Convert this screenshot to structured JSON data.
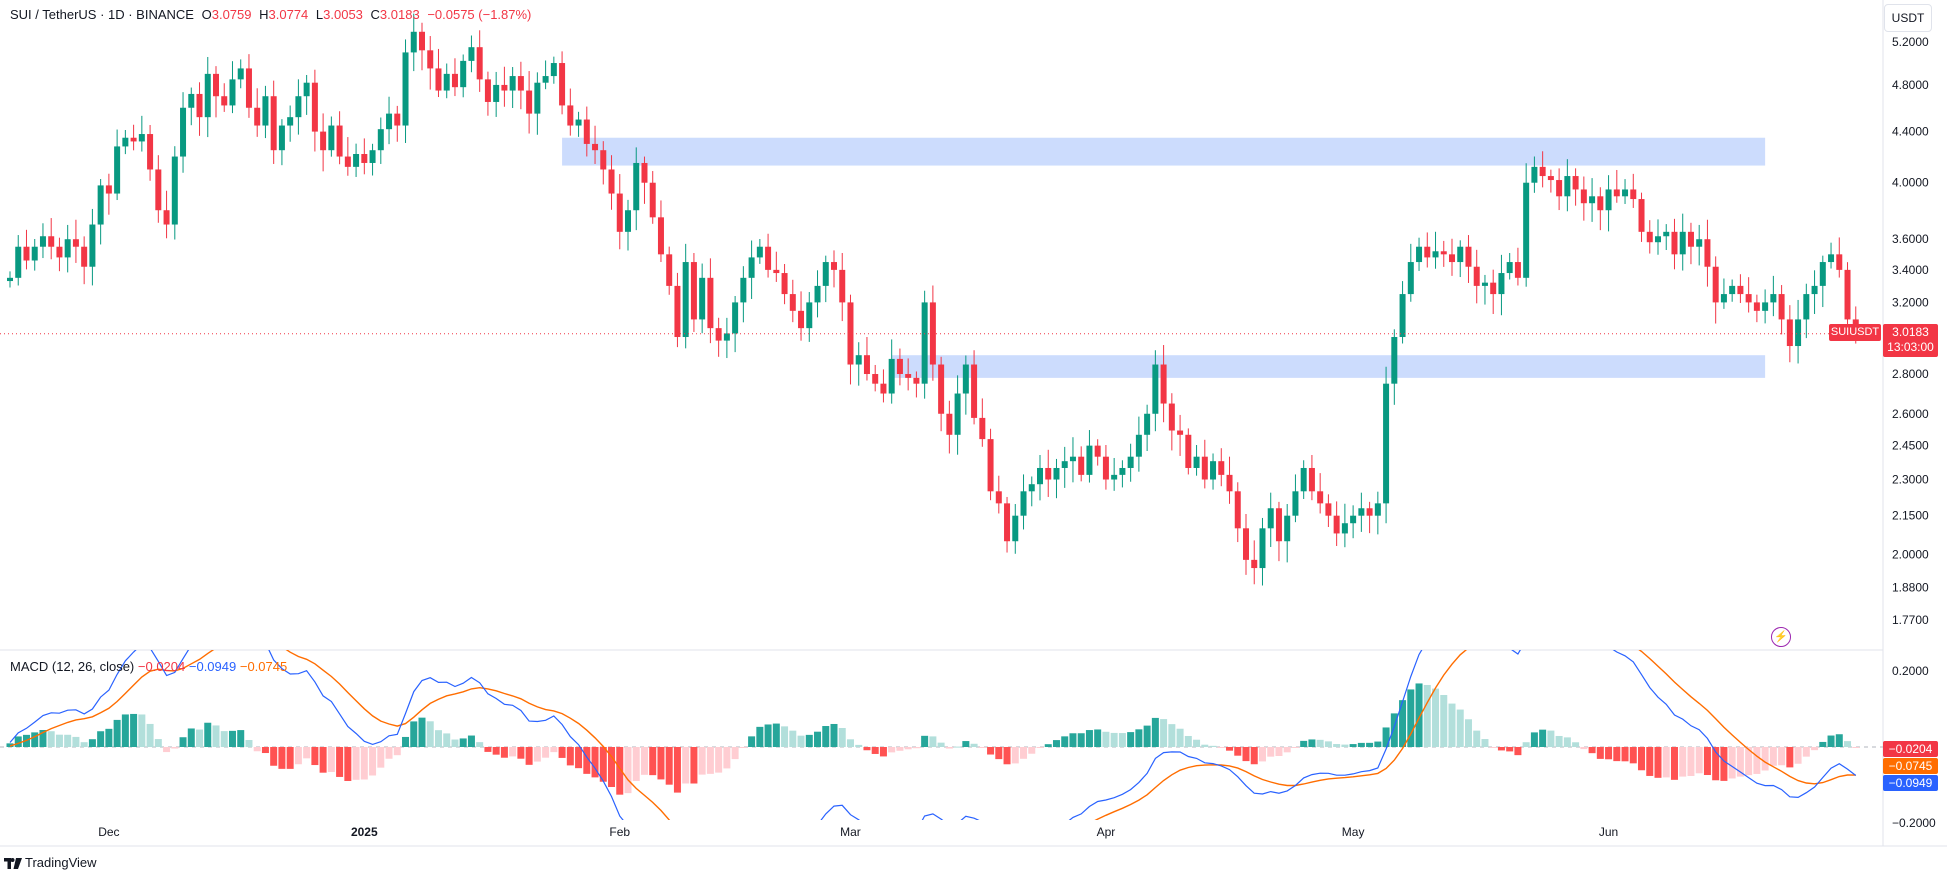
{
  "legend": {
    "symbol": "SUI / TetherUS · 1D · BINANCE",
    "o_label": "O",
    "o": "3.0759",
    "h_label": "H",
    "h": "3.0774",
    "l_label": "L",
    "l": "3.0053",
    "c_label": "C",
    "c": "3.0183",
    "change": "−0.0575 (−1.87%)"
  },
  "unit": "USDT",
  "price_tag": {
    "symbol": "SUIUSDT",
    "price": "3.0183",
    "countdown": "13:03:00"
  },
  "macd_legend": {
    "title": "MACD (12, 26, close)",
    "hist": "−0.0204",
    "macd": "−0.0949",
    "signal": "−0.0745"
  },
  "macd_tags": {
    "hist": "−0.0204",
    "signal": "−0.0745",
    "macd": "−0.0949"
  },
  "brand": "TradingView",
  "colors": {
    "up": "#089981",
    "down": "#f23645",
    "macd": "#2962ff",
    "signal": "#ff6d00",
    "zone": "#c7d8fd",
    "hist_up": "#26a69a",
    "hist_up_weak": "#b2dfdb",
    "hist_down": "#ff5252",
    "hist_down_weak": "#ffcdd2"
  },
  "chart_data": [
    {
      "type": "candlestick",
      "title": "SUI / TetherUS · 1D · BINANCE",
      "scale": "log",
      "ylim": [
        1.7,
        5.4
      ],
      "price_ticks": [
        "5.2000",
        "4.8000",
        "4.4000",
        "4.0000",
        "3.6000",
        "3.4000",
        "3.2000",
        "2.8000",
        "2.6000",
        "2.4500",
        "2.3000",
        "2.1500",
        "2.0000",
        "1.8800",
        "1.7700"
      ],
      "date_ticks": [
        {
          "label": "Dec",
          "date": "2024-12-01"
        },
        {
          "label": "2025",
          "date": "2025-01-01"
        },
        {
          "label": "Feb",
          "date": "2025-02-01"
        },
        {
          "label": "Mar",
          "date": "2025-03-01"
        },
        {
          "label": "Apr",
          "date": "2025-04-01"
        },
        {
          "label": "May",
          "date": "2025-05-01"
        },
        {
          "label": "Jun",
          "date": "2025-06-01"
        }
      ],
      "start_date": "2024-11-19",
      "zones": [
        {
          "from": "2025-01-25",
          "to": "2025-06-20",
          "low": 4.13,
          "high": 4.35
        },
        {
          "from": "2025-03-06",
          "to": "2025-06-20",
          "low": 2.78,
          "high": 2.9
        }
      ],
      "last_price": 3.0183,
      "closes": [
        3.35,
        3.55,
        3.46,
        3.55,
        3.62,
        3.55,
        3.48,
        3.6,
        3.55,
        3.42,
        3.7,
        3.98,
        3.92,
        4.28,
        4.35,
        4.32,
        4.38,
        4.1,
        3.8,
        3.7,
        4.2,
        4.6,
        4.72,
        4.52,
        4.9,
        4.7,
        4.62,
        4.85,
        4.95,
        4.6,
        4.45,
        4.7,
        4.25,
        4.45,
        4.52,
        4.7,
        4.82,
        4.4,
        4.25,
        4.45,
        4.2,
        4.12,
        4.22,
        4.15,
        4.25,
        4.42,
        4.55,
        4.45,
        5.1,
        5.3,
        5.12,
        4.95,
        4.75,
        4.9,
        4.78,
        5.02,
        5.15,
        4.85,
        4.65,
        4.8,
        4.75,
        4.88,
        4.75,
        4.55,
        4.82,
        4.88,
        5,
        4.62,
        4.45,
        4.5,
        4.3,
        4.25,
        4.1,
        3.92,
        3.65,
        3.8,
        4.15,
        4.0,
        3.75,
        3.5,
        3.3,
        3.0,
        3.45,
        3.1,
        3.35,
        3.05,
        2.98,
        3.02,
        3.2,
        3.35,
        3.48,
        3.55,
        3.4,
        3.38,
        3.25,
        3.15,
        3.05,
        3.2,
        3.3,
        3.45,
        3.4,
        3.2,
        2.85,
        2.9,
        2.8,
        2.75,
        2.7,
        2.88,
        2.8,
        2.78,
        2.75,
        3.2,
        2.85,
        2.6,
        2.5,
        2.7,
        2.85,
        2.58,
        2.48,
        2.25,
        2.2,
        2.05,
        2.15,
        2.25,
        2.28,
        2.35,
        2.3,
        2.35,
        2.38,
        2.4,
        2.32,
        2.45,
        2.4,
        2.3,
        2.32,
        2.35,
        2.4,
        2.5,
        2.6,
        2.85,
        2.65,
        2.52,
        2.5,
        2.35,
        2.4,
        2.3,
        2.38,
        2.32,
        2.25,
        2.1,
        1.98,
        1.95,
        2.1,
        2.18,
        2.05,
        2.15,
        2.25,
        2.35,
        2.25,
        2.2,
        2.15,
        2.08,
        2.12,
        2.15,
        2.18,
        2.15,
        2.2,
        2.75,
        3.0,
        3.25,
        3.45,
        3.55,
        3.48,
        3.52,
        3.5,
        3.45,
        3.55,
        3.42,
        3.3,
        3.32,
        3.25,
        3.38,
        3.45,
        3.35,
        4.0,
        4.12,
        4.05,
        4.02,
        3.9,
        4.05,
        3.95,
        3.85,
        3.9,
        3.8,
        3.95,
        3.9,
        3.95,
        3.88,
        3.65,
        3.58,
        3.62,
        3.65,
        3.5,
        3.65,
        3.55,
        3.6,
        3.42,
        3.2,
        3.25,
        3.3,
        3.25,
        3.2,
        3.15,
        3.2,
        3.25,
        3.1,
        2.95,
        3.1,
        3.25,
        3.3,
        3.45,
        3.5,
        3.4,
        3.1,
        3.02
      ]
    },
    {
      "type": "line",
      "title": "MACD (12, 26, close)",
      "ylim": [
        -0.26,
        0.3
      ],
      "ticks": [
        "0.2000",
        "0.0000",
        "−0.2000"
      ],
      "series": [
        {
          "name": "MACD",
          "role": "macd"
        },
        {
          "name": "Signal",
          "role": "signal"
        }
      ]
    }
  ]
}
